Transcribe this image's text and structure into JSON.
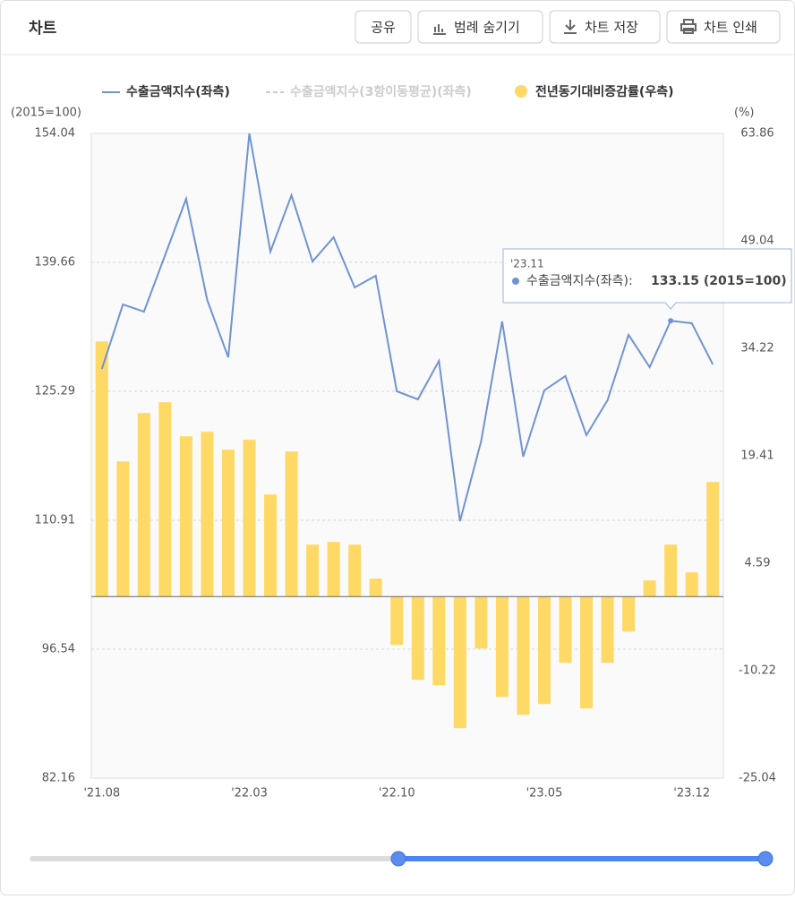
{
  "header": {
    "title": "차트",
    "buttons": [
      "공유",
      "범례 숨기기",
      "차트 저장",
      "차트 인쇄"
    ]
  },
  "chart_data": {
    "type": "combo",
    "y_label": "(2015=100)",
    "y2_label": "(%)",
    "categories": [
      "'21.08",
      null,
      null,
      null,
      null,
      null,
      null,
      "'22.03",
      null,
      null,
      null,
      null,
      null,
      null,
      "'22.10",
      null,
      null,
      null,
      null,
      null,
      null,
      "'23.05",
      null,
      null,
      null,
      null,
      null,
      null,
      "'23.12",
      null
    ],
    "series": [
      {
        "name": "수출금액지수(좌측)",
        "type": "line",
        "color": "#7094d1",
        "axis": "y",
        "values": [
          127.78,
          134.97,
          134.17,
          140.46,
          146.75,
          135.47,
          129.08,
          154.04,
          140.86,
          147.15,
          139.76,
          142.46,
          136.87,
          138.17,
          125.29,
          124.39,
          128.68,
          110.81,
          119.7,
          133.08,
          118.0,
          125.39,
          126.99,
          120.4,
          124.29,
          131.58,
          127.98,
          133.15,
          132.88,
          128.28
        ]
      },
      {
        "name": "수출금액지수(3항이동평균)(좌측)",
        "type": "line",
        "color": "#cccccc",
        "hidden": true
      },
      {
        "name": "전년동기대비증감률(우측)",
        "type": "bar",
        "color": "#ffd966",
        "axis": "y2",
        "values": [
          35.19,
          18.64,
          25.31,
          26.79,
          22.1,
          22.72,
          20.25,
          21.61,
          14.08,
          20.0,
          7.16,
          7.53,
          7.16,
          2.47,
          -6.67,
          -11.48,
          -12.22,
          -18.15,
          -7.16,
          -13.83,
          -16.3,
          -14.82,
          -9.14,
          -15.43,
          -9.14,
          -4.82,
          2.22,
          7.16,
          3.33,
          15.8
        ]
      }
    ],
    "ylim": [
      82.16,
      154.04
    ],
    "yticks": [
      82.16,
      96.54,
      110.91,
      125.29,
      139.66,
      154.04
    ],
    "y2lim": [
      -25.04,
      63.86
    ],
    "y2ticks": [
      -25.04,
      -10.22,
      4.59,
      19.41,
      34.22,
      49.04,
      63.86
    ],
    "grid": true,
    "tooltip": {
      "category": "'23.11",
      "label": "수출금액지수(좌측):",
      "value_label": "133.15 (2015=100)"
    }
  }
}
